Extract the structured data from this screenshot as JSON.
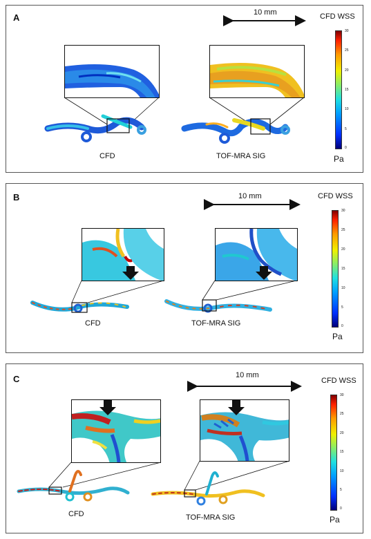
{
  "panels": [
    {
      "label": "A",
      "scale": "10 mm",
      "colorbar_title": "CFD WSS",
      "unit": "Pa",
      "ticks": [
        "30",
        "25",
        "20",
        "15",
        "10",
        "5",
        "0"
      ],
      "left_caption": "CFD",
      "right_caption": "TOF-MRA SIG"
    },
    {
      "label": "B",
      "scale": "10 mm",
      "colorbar_title": "CFD WSS",
      "unit": "Pa",
      "ticks": [
        "30",
        "25",
        "20",
        "15",
        "10",
        "5",
        "0"
      ],
      "left_caption": "CFD",
      "right_caption": "TOF-MRA SIG"
    },
    {
      "label": "C",
      "scale": "10 mm",
      "colorbar_title": "CFD WSS",
      "unit": "Pa",
      "ticks": [
        "30",
        "25",
        "20",
        "15",
        "10",
        "5",
        "0"
      ],
      "left_caption": "CFD",
      "right_caption": "TOF-MRA SIG"
    }
  ],
  "colors": {
    "low": "#00007a",
    "mid": "#20e0e0",
    "high": "#800000",
    "frame": "#555555"
  }
}
